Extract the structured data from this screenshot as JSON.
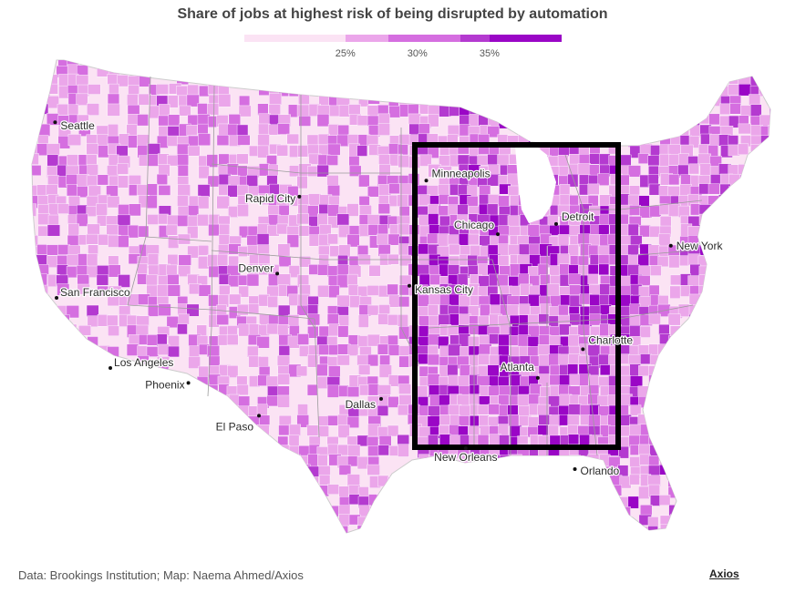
{
  "title": "Share of jobs at highest risk of being disrupted by automation",
  "legend": {
    "bins": [
      {
        "color": "#fbe3f4"
      },
      {
        "color": "#eba6ea"
      },
      {
        "color": "#d56ee0"
      },
      {
        "color": "#b43ad0"
      },
      {
        "color": "#9a06c6"
      }
    ],
    "ticks": [
      {
        "label": "25%",
        "value": 25
      },
      {
        "label": "30%",
        "value": 30
      },
      {
        "label": "35%",
        "value": 35
      }
    ],
    "range": [
      18,
      40
    ]
  },
  "cities": [
    {
      "name": "Seattle",
      "lon": -122.33,
      "lat": 47.61
    },
    {
      "name": "San Francisco",
      "lon": -122.42,
      "lat": 37.77
    },
    {
      "name": "Los Angeles",
      "lon": -118.24,
      "lat": 34.05
    },
    {
      "name": "Phoenix",
      "lon": -112.07,
      "lat": 33.45
    },
    {
      "name": "El Paso",
      "lon": -106.49,
      "lat": 31.76
    },
    {
      "name": "Denver",
      "lon": -104.99,
      "lat": 39.74
    },
    {
      "name": "Rapid City",
      "lon": -103.23,
      "lat": 44.08
    },
    {
      "name": "Dallas",
      "lon": -96.8,
      "lat": 32.78
    },
    {
      "name": "Kansas City",
      "lon": -94.58,
      "lat": 39.1
    },
    {
      "name": "Minneapolis",
      "lon": -93.27,
      "lat": 44.98
    },
    {
      "name": "Chicago",
      "lon": -87.63,
      "lat": 41.88
    },
    {
      "name": "Detroit",
      "lon": -83.05,
      "lat": 42.33
    },
    {
      "name": "New York",
      "lon": -74.0,
      "lat": 40.71
    },
    {
      "name": "Charlotte",
      "lon": -80.84,
      "lat": 35.23
    },
    {
      "name": "Atlanta",
      "lon": -84.39,
      "lat": 33.75
    },
    {
      "name": "New Orleans",
      "lon": -90.07,
      "lat": 29.95
    },
    {
      "name": "Orlando",
      "lon": -81.38,
      "lat": 28.54
    }
  ],
  "source": "Data: Brookings Institution; Map: Naema Ahmed/Axios",
  "brand": "Axios"
}
